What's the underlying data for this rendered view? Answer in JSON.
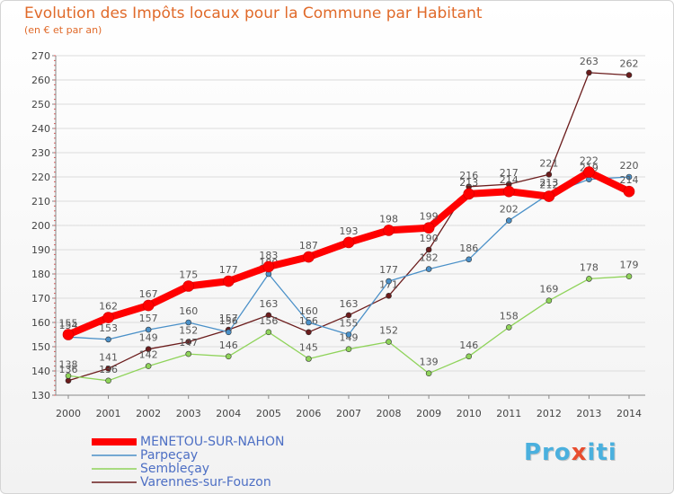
{
  "chart_data": {
    "type": "line",
    "title": "Evolution des Impôts locaux pour la Commune par Habitant",
    "subtitle": "(en € et par an)",
    "x": [
      "2000",
      "2001",
      "2002",
      "2003",
      "2004",
      "2005",
      "2006",
      "2007",
      "2008",
      "2009",
      "2010",
      "2011",
      "2012",
      "2013",
      "2014"
    ],
    "ylim": [
      130,
      270
    ],
    "yticks": [
      130,
      140,
      150,
      160,
      170,
      180,
      190,
      200,
      210,
      220,
      230,
      240,
      250,
      260,
      270
    ],
    "series": [
      {
        "name": "Varennes-sur-Fouzon",
        "color": "#6b1c1c",
        "values": [
          136,
          141,
          149,
          152,
          157,
          163,
          156,
          163,
          171,
          190,
          216,
          217,
          221,
          263,
          262
        ]
      },
      {
        "name": "Sembleçay",
        "color": "#8fd35a",
        "values": [
          138,
          136,
          142,
          147,
          146,
          156,
          145,
          149,
          152,
          139,
          146,
          158,
          169,
          178,
          179
        ]
      },
      {
        "name": "Parpeçay",
        "color": "#4a90c8",
        "values": [
          154,
          153,
          157,
          160,
          156,
          180,
          160,
          155,
          177,
          182,
          186,
          202,
          213,
          219,
          220
        ]
      },
      {
        "name": "MENETOU-SUR-NAHON",
        "color": "#ff0000",
        "values": [
          155,
          162,
          167,
          175,
          177,
          183,
          187,
          193,
          198,
          199,
          213,
          214,
          212,
          222,
          214
        ]
      }
    ],
    "legend": [
      "MENETOU-SUR-NAHON",
      "Parpeçay",
      "Sembleçay",
      "Varennes-sur-Fouzon"
    ]
  },
  "brand": {
    "logo_main": "Pro",
    "logo_x": "x",
    "logo_end": "iti"
  }
}
